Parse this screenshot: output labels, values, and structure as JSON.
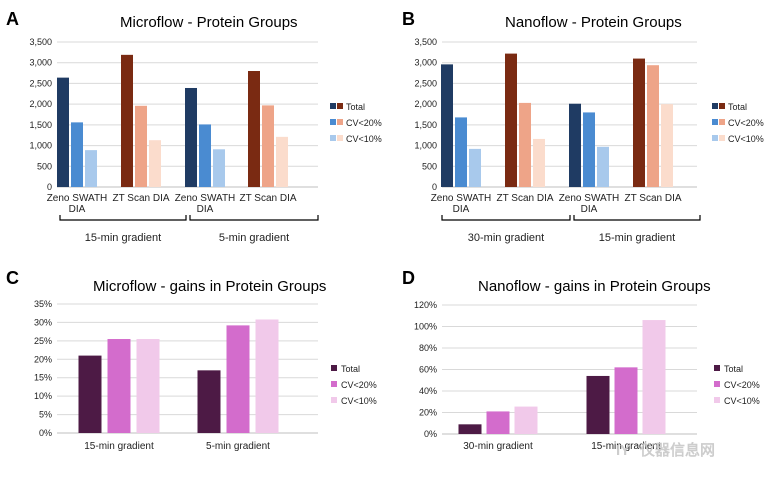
{
  "watermark": "仪器信息网",
  "watermark_logo": "IY",
  "chart_data": [
    {
      "id": "A",
      "letter": "A",
      "type": "bar",
      "title": "Microflow - Protein Groups",
      "ylim": [
        0,
        3500
      ],
      "yticks": [
        "0",
        "500",
        "1,000",
        "1,500",
        "2,000",
        "2,500",
        "3,000",
        "3,500"
      ],
      "ytick_values": [
        0,
        500,
        1000,
        1500,
        2000,
        2500,
        3000,
        3500
      ],
      "grid": true,
      "legend_position": "right",
      "legend": [
        "Total",
        "CV<20%",
        "CV<10%"
      ],
      "categories": [
        {
          "label": [
            "Zeno SWATH",
            "DIA"
          ],
          "values": [
            2640,
            1560,
            890
          ],
          "palette": "blue"
        },
        {
          "label": [
            "ZT Scan DIA"
          ],
          "values": [
            3190,
            1960,
            1130
          ],
          "palette": "orange"
        },
        {
          "label": [
            "Zeno SWATH",
            "DIA"
          ],
          "values": [
            2390,
            1510,
            910
          ],
          "palette": "blue"
        },
        {
          "label": [
            "ZT Scan DIA"
          ],
          "values": [
            2800,
            1970,
            1210
          ],
          "palette": "orange"
        }
      ],
      "groups": [
        "15-min gradient",
        "5-min gradient"
      ]
    },
    {
      "id": "B",
      "letter": "B",
      "type": "bar",
      "title": "Nanoflow - Protein Groups",
      "ylim": [
        0,
        3500
      ],
      "yticks": [
        "0",
        "500",
        "1,000",
        "1,500",
        "2,000",
        "2,500",
        "3,000",
        "3,500"
      ],
      "ytick_values": [
        0,
        500,
        1000,
        1500,
        2000,
        2500,
        3000,
        3500
      ],
      "grid": true,
      "legend_position": "right",
      "legend": [
        "Total",
        "CV<20%",
        "CV<10%"
      ],
      "categories": [
        {
          "label": [
            "Zeno SWATH",
            "DIA"
          ],
          "values": [
            2960,
            1680,
            920
          ],
          "palette": "blue"
        },
        {
          "label": [
            "ZT Scan DIA"
          ],
          "values": [
            3220,
            2030,
            1160
          ],
          "palette": "orange"
        },
        {
          "label": [
            "Zeno SWATH",
            "DIA"
          ],
          "values": [
            2010,
            1800,
            970
          ],
          "palette": "blue"
        },
        {
          "label": [
            "ZT Scan DIA"
          ],
          "values": [
            3100,
            2940,
            2000
          ],
          "palette": "orange"
        }
      ],
      "groups": [
        "30-min gradient",
        "15-min gradient"
      ]
    },
    {
      "id": "C",
      "letter": "C",
      "type": "bar",
      "title": "Microflow - gains in Protein Groups",
      "ylim": [
        0,
        35
      ],
      "yticks": [
        "0%",
        "5%",
        "10%",
        "15%",
        "20%",
        "25%",
        "30%",
        "35%"
      ],
      "ytick_values": [
        0,
        5,
        10,
        15,
        20,
        25,
        30,
        35
      ],
      "grid": true,
      "legend_position": "right",
      "legend": [
        "Total",
        "CV<20%",
        "CV<10%"
      ],
      "categories": [
        "15-min gradient",
        "5-min gradient"
      ],
      "series": [
        {
          "name": "Total",
          "values": [
            21,
            17
          ]
        },
        {
          "name": "CV<20%",
          "values": [
            25.5,
            29.2
          ]
        },
        {
          "name": "CV<10%",
          "values": [
            25.5,
            30.8
          ]
        }
      ]
    },
    {
      "id": "D",
      "letter": "D",
      "type": "bar",
      "title": "Nanoflow - gains in Protein Groups",
      "ylim": [
        0,
        120
      ],
      "yticks": [
        "0%",
        "20%",
        "40%",
        "60%",
        "80%",
        "100%",
        "120%"
      ],
      "ytick_values": [
        0,
        20,
        40,
        60,
        80,
        100,
        120
      ],
      "grid": true,
      "legend_position": "right",
      "legend": [
        "Total",
        "CV<20%",
        "CV<10%"
      ],
      "categories": [
        "30-min gradient",
        "15-min gradient"
      ],
      "series": [
        {
          "name": "Total",
          "values": [
            9,
            54
          ]
        },
        {
          "name": "CV<20%",
          "values": [
            21,
            62
          ]
        },
        {
          "name": "CV<10%",
          "values": [
            25.5,
            106
          ]
        }
      ]
    }
  ],
  "colors": {
    "blue": [
      "#1f3b63",
      "#4a8bd1",
      "#a8c9ec"
    ],
    "orange": [
      "#7a2a12",
      "#eea488",
      "#fbdccc"
    ],
    "purple": [
      "#4d1a45",
      "#d36ccc",
      "#f1c9ea"
    ]
  }
}
